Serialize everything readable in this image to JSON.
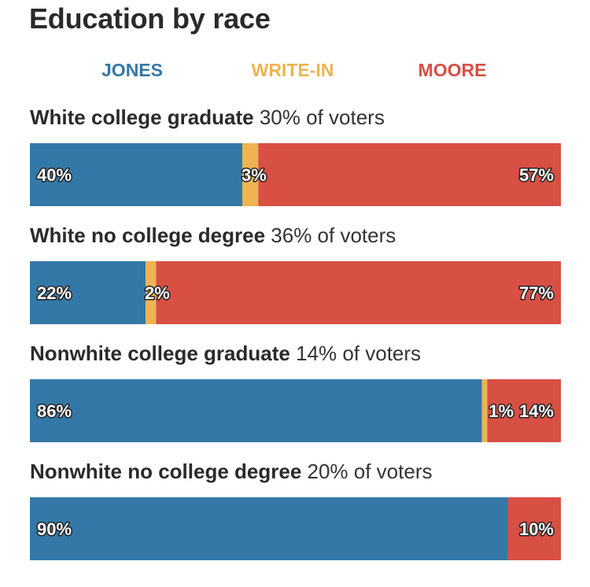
{
  "chart_data": {
    "type": "stacked-bar",
    "title": "Education by race",
    "series": [
      {
        "name": "JONES",
        "color": "#3478a7"
      },
      {
        "name": "WRITE-IN",
        "color": "#eeb451"
      },
      {
        "name": "MOORE",
        "color": "#d84f44"
      }
    ],
    "groups": [
      {
        "name": "White college graduate",
        "share": "30% of voters",
        "values": [
          40,
          3,
          57
        ],
        "labels": [
          "40%",
          "3%",
          "57%"
        ]
      },
      {
        "name": "White no college degree",
        "share": "36% of voters",
        "values": [
          22,
          2,
          77
        ],
        "labels": [
          "22%",
          "2%",
          "77%"
        ]
      },
      {
        "name": "Nonwhite college graduate",
        "share": "14% of voters",
        "values": [
          86,
          1,
          14
        ],
        "labels": [
          "86%",
          "1%",
          "14%"
        ]
      },
      {
        "name": "Nonwhite no college degree",
        "share": "20% of voters",
        "values": [
          90,
          0,
          10
        ],
        "labels": [
          "90%",
          null,
          "10%"
        ]
      }
    ]
  }
}
